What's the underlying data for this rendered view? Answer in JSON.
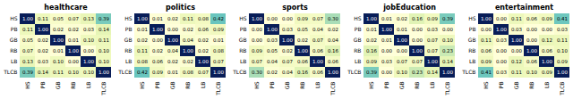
{
  "chart_data": [
    {
      "type": "heatmap",
      "title": "healthcare",
      "categories": [
        "HS",
        "PB",
        "GB",
        "RB",
        "LB",
        "TLCB"
      ],
      "values": [
        [
          1.0,
          0.11,
          0.05,
          0.07,
          0.13,
          0.39
        ],
        [
          0.11,
          1.0,
          0.02,
          0.02,
          0.03,
          0.14
        ],
        [
          0.05,
          0.02,
          1.0,
          0.01,
          0.1,
          0.11
        ],
        [
          0.07,
          0.02,
          0.01,
          1.0,
          0.0,
          0.1
        ],
        [
          0.13,
          0.03,
          0.1,
          0.0,
          1.0,
          0.1
        ],
        [
          0.39,
          0.14,
          0.11,
          0.1,
          0.1,
          1.0
        ]
      ],
      "value_labels": [
        [
          "1.00",
          "0.11",
          "0.05",
          "0.07",
          "0.13",
          "0.39"
        ],
        [
          "0.11",
          "1.00",
          "0.02",
          "0.02",
          "0.03",
          "0.14"
        ],
        [
          "0.05",
          "0.02",
          "1.00",
          "0.01",
          "0.10",
          "0.11"
        ],
        [
          "0.07",
          "0.02",
          "0.01",
          "1.00",
          "0.00",
          "0.10"
        ],
        [
          "0.13",
          "0.03",
          "0.10",
          "0.00",
          "1.00",
          "0.10"
        ],
        [
          "0.39",
          "0.14",
          "0.11",
          "0.10",
          "0.10",
          "1.00"
        ]
      ],
      "color": "YlGnBu",
      "color_range": [
        0.0,
        1.0
      ],
      "data_labels": true
    },
    {
      "type": "heatmap",
      "title": "politics",
      "categories": [
        "HS",
        "PB",
        "GB",
        "RB",
        "LB",
        "TLCB"
      ],
      "values": [
        [
          1.0,
          0.01,
          0.02,
          0.11,
          0.08,
          0.42
        ],
        [
          0.01,
          1.0,
          0.0,
          0.02,
          0.06,
          0.09
        ],
        [
          0.02,
          0.0,
          1.0,
          0.04,
          0.02,
          0.01
        ],
        [
          0.11,
          0.02,
          0.04,
          1.0,
          0.02,
          0.08
        ],
        [
          0.08,
          0.06,
          0.02,
          0.02,
          1.0,
          0.07
        ],
        [
          0.42,
          0.09,
          0.01,
          0.08,
          0.07,
          1.0
        ]
      ],
      "value_labels": [
        [
          "1.00",
          "0.01",
          "0.02",
          "0.11",
          "0.08",
          "0.42"
        ],
        [
          "0.01",
          "1.00",
          "0.00",
          "0.02",
          "0.06",
          "0.09"
        ],
        [
          "0.02",
          "0.00",
          "1.00",
          "0.04",
          "0.02",
          "0.01"
        ],
        [
          "0.11",
          "0.02",
          "0.04",
          "1.00",
          "0.02",
          "0.08"
        ],
        [
          "0.08",
          "0.06",
          "0.02",
          "0.02",
          "1.00",
          "0.07"
        ],
        [
          "0.42",
          "0.09",
          "0.01",
          "0.08",
          "0.07",
          "1.00"
        ]
      ],
      "color": "YlGnBu",
      "color_range": [
        0.0,
        1.0
      ],
      "data_labels": true
    },
    {
      "type": "heatmap",
      "title": "sports",
      "categories": [
        "HS",
        "PB",
        "GB",
        "RB",
        "LB",
        "TLCB"
      ],
      "values": [
        [
          1.0,
          0.0,
          0.0,
          0.09,
          0.07,
          0.3
        ],
        [
          0.0,
          1.0,
          0.03,
          0.05,
          0.04,
          0.02
        ],
        [
          0.0,
          0.03,
          1.0,
          0.02,
          0.07,
          0.04
        ],
        [
          0.09,
          0.05,
          0.02,
          1.0,
          0.06,
          0.16
        ],
        [
          0.07,
          0.04,
          0.07,
          0.06,
          1.0,
          0.06
        ],
        [
          0.3,
          0.02,
          0.04,
          0.16,
          0.06,
          1.0
        ]
      ],
      "value_labels": [
        [
          "1.00",
          "0.00",
          "0.00",
          "0.09",
          "0.07",
          "0.30"
        ],
        [
          "0.00",
          "1.00",
          "0.03",
          "0.05",
          "0.04",
          "0.02"
        ],
        [
          "0.00",
          "0.03",
          "1.00",
          "0.02",
          "0.07",
          "0.04"
        ],
        [
          "0.09",
          "0.05",
          "0.02",
          "1.00",
          "0.06",
          "0.16"
        ],
        [
          "0.07",
          "0.04",
          "0.07",
          "0.06",
          "1.00",
          "0.06"
        ],
        [
          "0.30",
          "0.02",
          "0.04",
          "0.16",
          "0.06",
          "1.00"
        ]
      ],
      "color": "YlGnBu",
      "color_range": [
        0.0,
        1.0
      ],
      "data_labels": true
    },
    {
      "type": "heatmap",
      "title": "jobEducation",
      "categories": [
        "HS",
        "PB",
        "GB",
        "RB",
        "LB",
        "TLCB"
      ],
      "values": [
        [
          1.0,
          0.01,
          0.02,
          0.16,
          0.09,
          0.39
        ],
        [
          0.01,
          1.0,
          0.01,
          0.0,
          0.03,
          0.0
        ],
        [
          0.02,
          0.01,
          1.0,
          0.0,
          0.07,
          0.1
        ],
        [
          0.16,
          0.0,
          0.0,
          1.0,
          0.07,
          0.23
        ],
        [
          0.09,
          0.03,
          0.07,
          0.07,
          1.0,
          0.14
        ],
        [
          0.39,
          0.0,
          0.1,
          0.23,
          0.14,
          1.0
        ]
      ],
      "value_labels": [
        [
          "1.00",
          "0.01",
          "0.02",
          "0.16",
          "0.09",
          "0.39"
        ],
        [
          "0.01",
          "1.00",
          "0.01",
          "0.00",
          "0.03",
          "0.00"
        ],
        [
          "0.02",
          "0.01",
          "1.00",
          "0.00",
          "0.07",
          "0.10"
        ],
        [
          "0.16",
          "0.00",
          "0.00",
          "1.00",
          "0.07",
          "0.23"
        ],
        [
          "0.09",
          "0.03",
          "0.07",
          "0.07",
          "1.00",
          "0.14"
        ],
        [
          "0.39",
          "0.00",
          "0.10",
          "0.23",
          "0.14",
          "1.00"
        ]
      ],
      "color": "YlGnBu",
      "color_range": [
        0.0,
        1.0
      ],
      "data_labels": true
    },
    {
      "type": "heatmap",
      "title": "entertainment",
      "categories": [
        "HS",
        "PB",
        "GB",
        "RB",
        "LB",
        "TLCB"
      ],
      "values": [
        [
          1.0,
          0.0,
          0.11,
          0.06,
          0.09,
          0.41
        ],
        [
          0.0,
          1.0,
          0.03,
          0.0,
          0.0,
          0.03
        ],
        [
          0.11,
          0.03,
          1.0,
          0.0,
          0.12,
          0.11
        ],
        [
          0.06,
          0.0,
          0.0,
          1.0,
          0.06,
          0.1
        ],
        [
          0.09,
          0.0,
          0.12,
          0.06,
          1.0,
          0.09
        ],
        [
          0.41,
          0.03,
          0.11,
          0.1,
          0.09,
          1.0
        ]
      ],
      "value_labels": [
        [
          "1.00",
          "0.00",
          "0.11",
          "0.06",
          "0.09",
          "0.41"
        ],
        [
          "0.00",
          "1.00",
          "0.03",
          "0.00",
          "0.00",
          "0.03"
        ],
        [
          "0.11",
          "0.03",
          "1.00",
          "0.00",
          "0.12",
          "0.11"
        ],
        [
          "0.06",
          "0.00",
          "0.00",
          "1.00",
          "0.06",
          "0.10"
        ],
        [
          "0.09",
          "0.00",
          "0.12",
          "0.06",
          "1.00",
          "0.09"
        ],
        [
          "0.41",
          "0.03",
          "0.11",
          "0.10",
          "0.09",
          "1.00"
        ]
      ],
      "color": "YlGnBu",
      "color_range": [
        0.0,
        1.0
      ],
      "data_labels": true
    }
  ]
}
